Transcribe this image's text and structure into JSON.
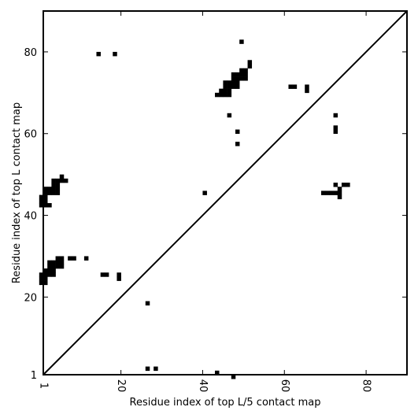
{
  "chart_data": {
    "type": "heatmap",
    "xlabel": "Residue index of top L/5 contact map",
    "ylabel": "Residue index of top L contact map",
    "xlim": [
      1,
      90
    ],
    "ylim": [
      1,
      90
    ],
    "x_ticks": [
      1,
      20,
      40,
      60,
      80
    ],
    "x_tick_labels": [
      "1",
      "20",
      "40",
      "60",
      "80"
    ],
    "y_ticks": [
      1,
      20,
      40,
      60,
      80
    ],
    "y_tick_labels": [
      "1",
      "20",
      "40",
      "60",
      "80"
    ],
    "grid": false,
    "cell_color": "#000000",
    "diagonal": {
      "from": [
        1,
        1
      ],
      "to": [
        90,
        90
      ]
    },
    "upper_triangle_cells": [
      [
        1,
        43
      ],
      [
        1,
        44
      ],
      [
        1,
        45
      ],
      [
        2,
        43
      ],
      [
        2,
        44
      ],
      [
        2,
        45
      ],
      [
        2,
        46
      ],
      [
        2,
        47
      ],
      [
        3,
        43
      ],
      [
        3,
        46
      ],
      [
        3,
        47
      ],
      [
        4,
        46
      ],
      [
        4,
        47
      ],
      [
        4,
        48
      ],
      [
        4,
        49
      ],
      [
        5,
        46
      ],
      [
        5,
        47
      ],
      [
        5,
        48
      ],
      [
        5,
        49
      ],
      [
        6,
        49
      ],
      [
        6,
        50
      ],
      [
        7,
        49
      ],
      [
        1,
        24
      ],
      [
        1,
        25
      ],
      [
        1,
        26
      ],
      [
        2,
        24
      ],
      [
        2,
        25
      ],
      [
        2,
        26
      ],
      [
        2,
        27
      ],
      [
        3,
        26
      ],
      [
        3,
        27
      ],
      [
        3,
        28
      ],
      [
        3,
        29
      ],
      [
        4,
        26
      ],
      [
        4,
        27
      ],
      [
        4,
        28
      ],
      [
        4,
        29
      ],
      [
        5,
        28
      ],
      [
        5,
        29
      ],
      [
        5,
        30
      ],
      [
        6,
        28
      ],
      [
        6,
        29
      ],
      [
        6,
        30
      ],
      [
        8,
        30
      ],
      [
        9,
        30
      ],
      [
        12,
        30
      ],
      [
        16,
        26
      ],
      [
        17,
        26
      ],
      [
        20,
        25
      ],
      [
        20,
        26
      ],
      [
        27,
        19
      ],
      [
        15,
        80
      ],
      [
        19,
        80
      ],
      [
        41,
        46
      ],
      [
        44,
        70
      ],
      [
        45,
        70
      ],
      [
        45,
        71
      ],
      [
        46,
        70
      ],
      [
        46,
        71
      ],
      [
        46,
        72
      ],
      [
        46,
        73
      ],
      [
        47,
        70
      ],
      [
        47,
        71
      ],
      [
        47,
        72
      ],
      [
        47,
        73
      ],
      [
        48,
        72
      ],
      [
        48,
        73
      ],
      [
        48,
        74
      ],
      [
        48,
        75
      ],
      [
        49,
        72
      ],
      [
        49,
        73
      ],
      [
        49,
        74
      ],
      [
        49,
        75
      ],
      [
        50,
        74
      ],
      [
        50,
        75
      ],
      [
        50,
        76
      ],
      [
        51,
        74
      ],
      [
        51,
        75
      ],
      [
        51,
        76
      ],
      [
        52,
        77
      ],
      [
        52,
        78
      ],
      [
        50,
        83
      ],
      [
        47,
        65
      ],
      [
        49,
        61
      ],
      [
        49,
        58
      ],
      [
        62,
        72
      ],
      [
        63,
        72
      ],
      [
        66,
        71
      ],
      [
        66,
        72
      ],
      [
        73,
        65
      ],
      [
        73,
        61
      ],
      [
        73,
        62
      ]
    ],
    "lower_triangle_cells": [
      [
        27,
        3
      ],
      [
        29,
        3
      ],
      [
        44,
        2
      ],
      [
        48,
        1
      ],
      [
        70,
        46
      ],
      [
        71,
        46
      ],
      [
        72,
        46
      ],
      [
        73,
        46
      ],
      [
        73,
        48
      ],
      [
        74,
        45
      ],
      [
        74,
        46
      ],
      [
        74,
        47
      ],
      [
        75,
        48
      ],
      [
        76,
        48
      ]
    ]
  }
}
